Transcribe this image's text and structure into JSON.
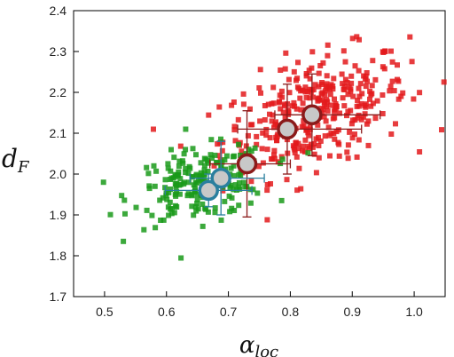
{
  "chart_data": {
    "type": "scatter",
    "title": "",
    "xlabel": {
      "main": "α",
      "sub": "loc"
    },
    "ylabel": {
      "main": "d",
      "sub": "F"
    },
    "xlim": [
      0.45,
      1.05
    ],
    "ylim": [
      1.7,
      2.4
    ],
    "xticks": [
      "0.5",
      "0.6",
      "0.7",
      "0.8",
      "0.9",
      "1.0"
    ],
    "yticks": [
      "1.7",
      "1.8",
      "1.9",
      "2.0",
      "2.1",
      "2.2",
      "2.3",
      "2.4"
    ],
    "grid": false,
    "legend": "none",
    "series": [
      {
        "color": "#e31a1c",
        "marker": "square",
        "cloud": {
          "center_x": 0.84,
          "center_y": 2.15,
          "spread_x": 0.075,
          "spread_y": 0.075,
          "correlation": 0.45,
          "count": 360
        },
        "means": [
          {
            "x": 0.73,
            "y": 2.025,
            "xerr": [
              0.06,
              0.07
            ],
            "yerr": [
              0.13,
              0.13
            ]
          },
          {
            "x": 0.795,
            "y": 2.11,
            "xerr": [
              0.08,
              0.12
            ],
            "yerr": [
              0.11,
              0.11
            ]
          },
          {
            "x": 0.835,
            "y": 2.145,
            "xerr": [
              0.06,
              0.11
            ],
            "yerr": [
              0.1,
              0.1
            ]
          }
        ],
        "mean_fill": "#c8c8c8",
        "mean_edge": "#8b1a1a"
      },
      {
        "color": "#1a9a1a",
        "marker": "square",
        "cloud": {
          "center_x": 0.655,
          "center_y": 1.975,
          "spread_x": 0.055,
          "spread_y": 0.045,
          "correlation": 0.3,
          "count": 210
        },
        "means": [
          {
            "x": 0.668,
            "y": 1.96,
            "xerr": [
              0.07,
              0.07
            ],
            "yerr": [
              0.04,
              0.04
            ]
          },
          {
            "x": 0.688,
            "y": 1.99,
            "xerr": [
              0.05,
              0.07
            ],
            "yerr": [
              0.09,
              0.09
            ]
          }
        ],
        "mean_fill": "#c8c8c8",
        "mean_edge": "#2a7f9e"
      }
    ]
  }
}
